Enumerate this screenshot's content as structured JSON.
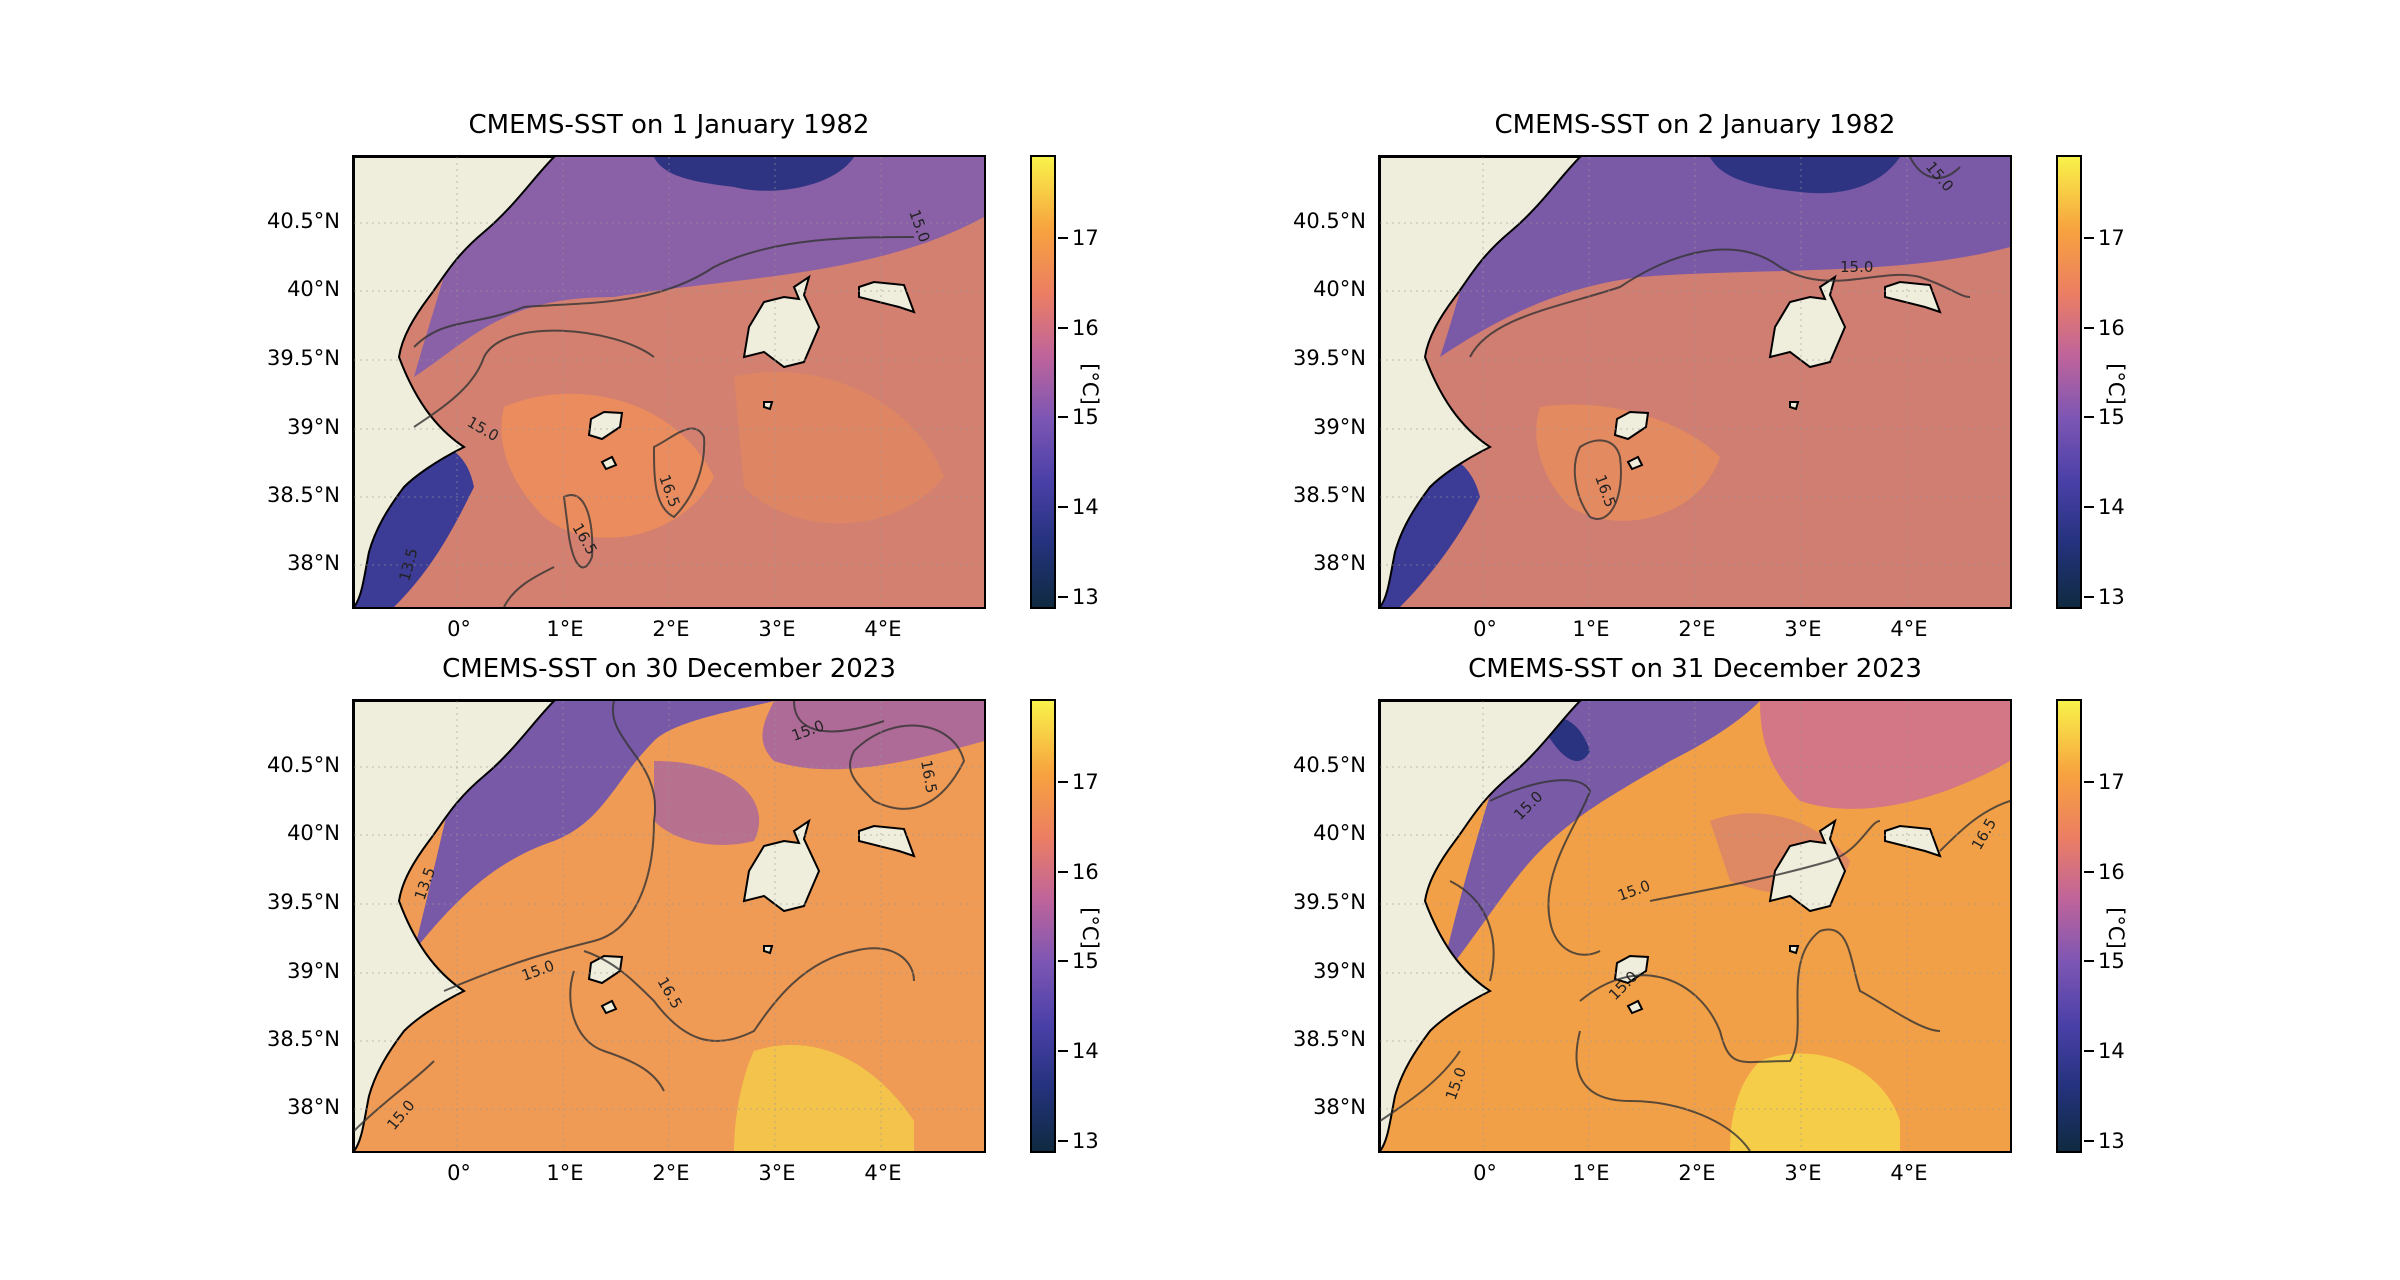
{
  "panels": [
    {
      "title": "CMEMS-SST on 1 January 1982",
      "contours": [
        "13.5",
        "15.0",
        "15.0",
        "16.5",
        "16.5"
      ]
    },
    {
      "title": "CMEMS-SST on 2 January 1982",
      "contours": [
        "15.0",
        "15.0",
        "16.5"
      ]
    },
    {
      "title": "CMEMS-SST on 30 December 2023",
      "contours": [
        "15.0",
        "15.0",
        "16.5",
        "16.5",
        "15.0",
        "13.5"
      ]
    },
    {
      "title": "CMEMS-SST on 31 December 2023",
      "contours": [
        "15.0",
        "15.0",
        "15.0",
        "16.5",
        "15.0"
      ]
    }
  ],
  "axes": {
    "y_ticks": [
      "40.5°N",
      "40°N",
      "39.5°N",
      "39°N",
      "38.5°N",
      "38°N"
    ],
    "x_ticks": [
      "0°",
      "1°E",
      "2°E",
      "3°E",
      "4°E"
    ],
    "colorbar_ticks": [
      "17",
      "16",
      "15",
      "14",
      "13"
    ],
    "colorbar_label": "[°C]",
    "colorbar_range": [
      12.9,
      17.9
    ]
  },
  "colors": {
    "land": "#efeddb",
    "colormap": [
      "#0f2a40",
      "#24327d",
      "#4a40a8",
      "#7d56b4",
      "#c0649a",
      "#ec7f62",
      "#f7a33f",
      "#f8f24a"
    ]
  }
}
